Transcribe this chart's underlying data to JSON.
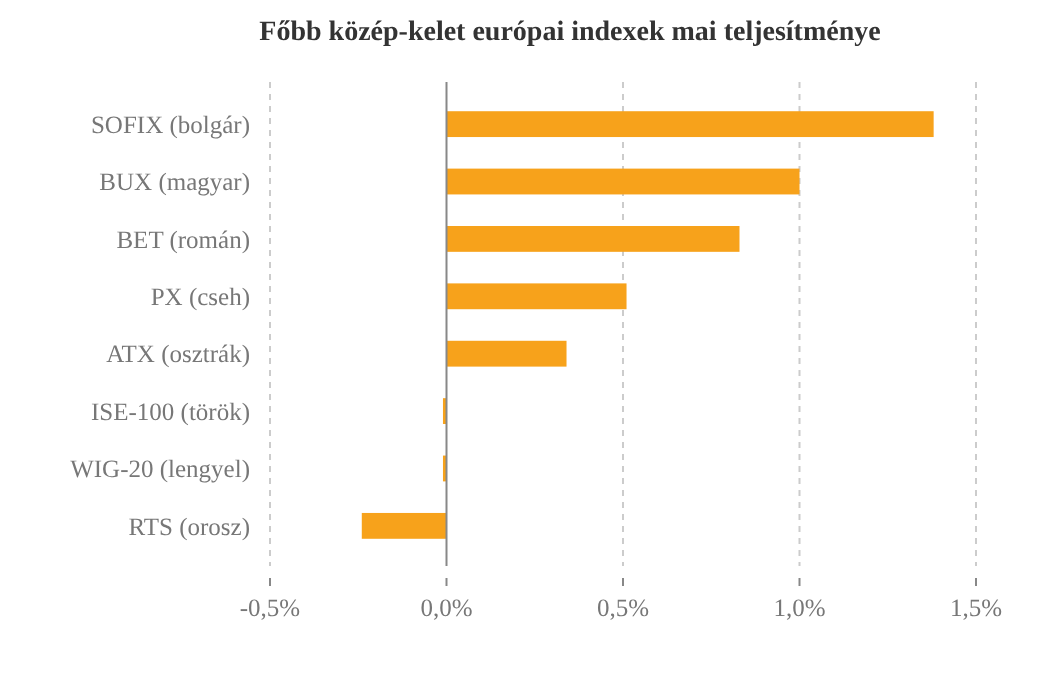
{
  "chart_data": {
    "type": "bar",
    "orientation": "horizontal",
    "title": "Főbb közép-kelet európai indexek mai teljesítménye",
    "categories": [
      "SOFIX (bolgár)",
      "BUX (magyar)",
      "BET (román)",
      "PX (cseh)",
      "ATX (osztrák)",
      "ISE-100 (török)",
      "WIG-20 (lengyel)",
      "RTS (orosz)"
    ],
    "values": [
      1.38,
      1.0,
      0.83,
      0.51,
      0.34,
      -0.01,
      -0.01,
      -0.24
    ],
    "color": "#f7a21b",
    "xlim": [
      -0.5,
      1.5
    ],
    "xticks": [
      {
        "value": -0.5,
        "label": "-0,5%"
      },
      {
        "value": 0,
        "label": "0,0%"
      },
      {
        "value": 0.5,
        "label": "0,5%"
      },
      {
        "value": 1,
        "label": "1,0%"
      },
      {
        "value": 1.5,
        "label": "1,5%"
      }
    ],
    "grid": "x"
  }
}
